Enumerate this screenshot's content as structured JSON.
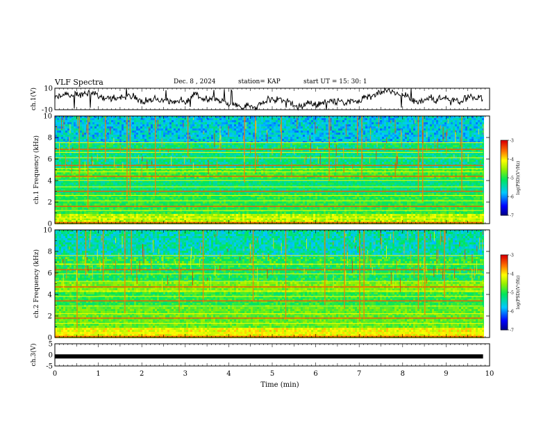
{
  "header": {
    "title": "VLF Spectra",
    "date": "Dec. 8 , 2024",
    "station": "station= KAP",
    "start": "start  UT =  15: 30: 1"
  },
  "chart_data": [
    {
      "type": "line",
      "name": "ch1-waveform",
      "ylabel": "ch.1(V)",
      "ylim": [
        -10,
        10
      ],
      "yticks": [
        "10",
        "-10"
      ],
      "xlim": [
        0,
        10
      ],
      "data_end_min": 9.85,
      "color": "#000000"
    },
    {
      "type": "heatmap",
      "name": "ch1-spectrogram",
      "ylabel": "ch.1  Frequency (kHz)",
      "ylim": [
        0,
        10
      ],
      "yticks": [
        "0",
        "2",
        "4",
        "6",
        "8",
        "10"
      ],
      "xlim": [
        0,
        10
      ],
      "data_end_min": 9.85,
      "colorbar": {
        "label": "log(PSD)(V²/Hz)",
        "range": [
          -7,
          -3
        ],
        "ticks": [
          "-3",
          "-4",
          "-5",
          "-6",
          "-7"
        ]
      },
      "lines_khz": [
        0.1,
        0.5,
        1.2,
        1.6,
        2.1,
        2.6,
        3.0,
        3.4,
        4.0,
        4.4,
        4.8,
        5.1,
        5.4,
        6.1,
        6.6,
        6.9,
        7.5
      ],
      "bursts_min": [
        0.55,
        0.75,
        1.15,
        1.65,
        1.72,
        2.3,
        3.05,
        4.35,
        4.6,
        5.2,
        6.3,
        6.95,
        7.05,
        8.35,
        8.45,
        9.35
      ]
    },
    {
      "type": "heatmap",
      "name": "ch2-spectrogram",
      "ylabel": "ch.2  Frequency (kHz)",
      "ylim": [
        0,
        10
      ],
      "yticks": [
        "0",
        "2",
        "4",
        "6",
        "8",
        "10"
      ],
      "xlim": [
        0,
        10
      ],
      "data_end_min": 9.85,
      "colorbar": {
        "label": "log(PSD)(V²/Hz)",
        "range": [
          -7,
          -3
        ],
        "ticks": [
          "-3",
          "-4",
          "-5",
          "-6",
          "-7"
        ]
      },
      "lines_khz": [
        0.1,
        0.4,
        1.3,
        1.8,
        2.2,
        2.9,
        3.4,
        3.8,
        4.3,
        4.7,
        5.2,
        5.9,
        6.3,
        6.8,
        7.6
      ],
      "bursts_min": [
        0.5,
        0.7,
        1.1,
        1.6,
        1.75,
        2.85,
        3.4,
        4.55,
        5.3,
        6.2,
        6.65,
        7.0,
        7.1,
        8.35,
        8.5,
        8.95
      ]
    },
    {
      "type": "line",
      "name": "ch3-waveform",
      "ylabel": "ch.3(V)",
      "ylim": [
        -5,
        5
      ],
      "yticks": [
        "5",
        "0",
        "-5"
      ],
      "xlim": [
        0,
        10
      ],
      "data_end_min": 9.85,
      "color": "#000000",
      "constant_level_v": -0.7
    }
  ],
  "xaxis": {
    "label": "Time  (min)",
    "ticks": [
      "0",
      "1",
      "2",
      "3",
      "4",
      "5",
      "6",
      "7",
      "8",
      "9",
      "10"
    ]
  }
}
